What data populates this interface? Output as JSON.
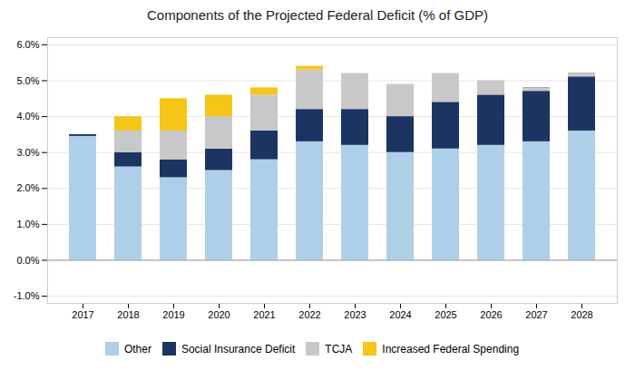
{
  "chart_data": {
    "type": "bar",
    "title": "Components of the Projected Federal Deficit (% of GDP)",
    "categories": [
      "2017",
      "2018",
      "2019",
      "2020",
      "2021",
      "2022",
      "2023",
      "2024",
      "2025",
      "2026",
      "2027",
      "2028"
    ],
    "series": [
      {
        "name": "Other",
        "color": "#aecfe8",
        "values": [
          0.0345,
          0.026,
          0.023,
          0.025,
          0.028,
          0.033,
          0.032,
          0.03,
          0.031,
          0.032,
          0.033,
          0.036
        ]
      },
      {
        "name": "Social Insurance Deficit",
        "color": "#1c3462",
        "values": [
          0.0005,
          0.004,
          0.005,
          0.006,
          0.008,
          0.009,
          0.01,
          0.01,
          0.013,
          0.014,
          0.015,
          0.016
        ]
      },
      {
        "name": "TCJA",
        "color": "#c8c8c8",
        "values": [
          0.0,
          0.006,
          0.008,
          0.009,
          0.01,
          0.011,
          0.01,
          0.009,
          0.008,
          0.004,
          -0.001,
          -0.001
        ]
      },
      {
        "name": "Increased Federal Spending",
        "color": "#f5c518",
        "values": [
          0.0,
          0.004,
          0.009,
          0.006,
          0.002,
          0.001,
          0.0,
          0.0,
          0.0,
          0.0,
          0.0,
          0.0
        ]
      }
    ],
    "stacked": true,
    "ylim": [
      -0.012,
      0.062
    ],
    "yticks": [
      {
        "value": -0.01,
        "label": "-1.0%"
      },
      {
        "value": 0.0,
        "label": "0.0%"
      },
      {
        "value": 0.01,
        "label": "1.0%"
      },
      {
        "value": 0.02,
        "label": "2.0%"
      },
      {
        "value": 0.03,
        "label": "3.0%"
      },
      {
        "value": 0.04,
        "label": "4.0%"
      },
      {
        "value": 0.05,
        "label": "5.0%"
      },
      {
        "value": 0.06,
        "label": "6.0%"
      }
    ],
    "grid": true,
    "legend": "bottom"
  }
}
